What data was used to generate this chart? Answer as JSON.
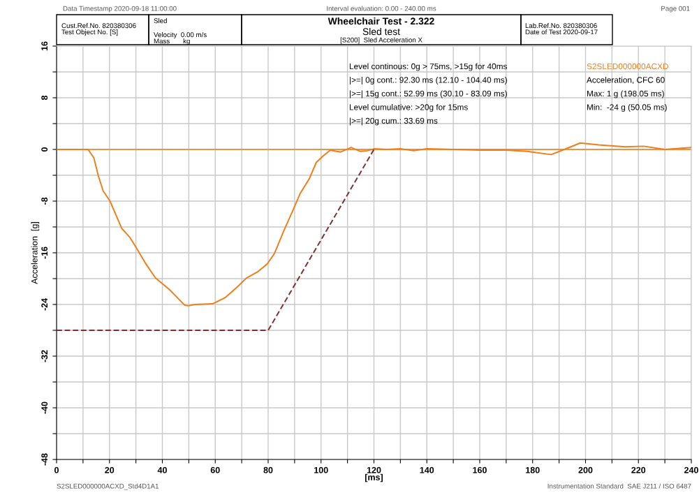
{
  "chart_data": {
    "type": "line",
    "title": "Wheelchair Test - 2.322",
    "subtitle": "Sled test",
    "xlabel": "[ms]",
    "ylabel": "Acceleration  [g]",
    "xlim": [
      0,
      240
    ],
    "ylim": [
      -48,
      16
    ],
    "xticks": [
      0,
      {
        "value": 10,
        "label": null
      },
      20,
      {
        "value": 30,
        "label": null
      },
      40,
      {
        "value": 50,
        "label": null
      },
      60,
      {
        "value": 70,
        "label": null
      },
      80,
      {
        "value": 90,
        "label": null
      },
      100,
      {
        "value": 110,
        "label": null
      },
      120,
      {
        "value": 130,
        "label": null
      },
      140,
      {
        "value": 150,
        "label": null
      },
      160,
      {
        "value": 170,
        "label": null
      },
      180,
      {
        "value": 190,
        "label": null
      },
      200,
      {
        "value": 210,
        "label": null
      },
      220,
      {
        "value": 230,
        "label": null
      },
      240
    ],
    "yticks": [
      -48,
      {
        "value": -44,
        "label": null
      },
      -40,
      {
        "value": -36,
        "label": null
      },
      -32,
      {
        "value": -28,
        "label": null
      },
      -24,
      {
        "value": -20,
        "label": null
      },
      -16,
      {
        "value": -12,
        "label": null
      },
      -8,
      {
        "value": -4,
        "label": null
      },
      0,
      {
        "value": 4,
        "label": null
      },
      8,
      {
        "value": 12,
        "label": null
      },
      16
    ],
    "grid": true,
    "legend": false,
    "marker": "none",
    "series": [
      {
        "name": "S2SLED000000ACXD",
        "color": "#f07d1a",
        "line_style": "solid",
        "x": [
          0,
          11.9,
          14.1,
          15.8,
          17.6,
          20.2,
          22.4,
          24.6,
          27.7,
          30.4,
          33.9,
          37.4,
          40.1,
          42.7,
          48.4,
          49.8,
          52.4,
          59.0,
          63.9,
          68.3,
          71.8,
          76.2,
          79.7,
          82.4,
          85.9,
          89.4,
          92.0,
          95.6,
          98.2,
          100.8,
          103.5,
          107.4,
          111.4,
          114.9,
          117.5,
          120,
          125,
          130,
          135,
          140,
          150,
          160,
          170,
          178,
          187,
          192,
          198,
          205,
          215,
          222,
          230,
          240
        ],
        "values": [
          0,
          0,
          -1.3,
          -4.1,
          -6.4,
          -8.0,
          -10.1,
          -12.2,
          -13.6,
          -15.4,
          -17.8,
          -19.9,
          -20.8,
          -21.7,
          -24.1,
          -24.2,
          -24.0,
          -23.9,
          -22.9,
          -21.3,
          -19.9,
          -18.9,
          -17.7,
          -16.1,
          -12.6,
          -9.4,
          -6.9,
          -4.5,
          -2.0,
          -1.0,
          -0.1,
          -0.4,
          0.3,
          -0.3,
          -0.2,
          0.1,
          0,
          0.1,
          -0.2,
          0.1,
          0,
          -0.1,
          -0.1,
          -0.3,
          -0.8,
          0,
          1.0,
          0.7,
          0.4,
          0.5,
          0,
          0.3
        ]
      },
      {
        "color": "#7a2e2e",
        "line_style": "dashed",
        "x": [
          0,
          80,
          120
        ],
        "values": [
          -28,
          -28,
          0
        ]
      }
    ],
    "ref_lines": [
      {
        "axis": "y",
        "value": 0,
        "color": "#f07d1a",
        "line_style": "solid"
      }
    ],
    "annotations": [
      "Data Timestamp 2020-09-18 11:00:00",
      "Interval evaluation: 0.00 - 240.00 ms",
      "Page 001",
      "Cust.Ref.No. 820380306\nTest Object No. [S]",
      "Sled",
      "Velocity  0.00 m/s\nMass       kg",
      "[S200]  Sled Acceleration X",
      "Lab.Ref.No. 820380306\nDate of Test 2020-09-17",
      "Level continous: 0g > 75ms, >15g for 40ms",
      "|>=| 0g cont.: 92.30 ms (12.10 - 104.40 ms)",
      "|>=| 15g cont.: 52.99 ms (30.10 - 83.09 ms)",
      "Level cumulative: >20g for 15ms",
      "|>=| 20g cum.: 33.69 ms",
      "Acceleration, CFC 60",
      "Max: 1 g (198.05 ms)",
      "Min:  -24 g (50.05 ms)",
      "S2SLED000000ACXD_Std4D1A1",
      "Instrumentation Standard  SAE J211 / ISO 6487"
    ]
  }
}
